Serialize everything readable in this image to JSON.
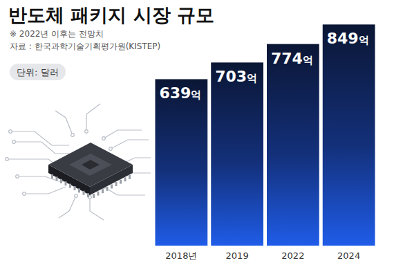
{
  "chart_data": {
    "type": "bar",
    "title": "반도체 패키지 시장 규모",
    "subtitle": "※ 2022년 이후는 전망치",
    "source": "자료 : 한국과학기술기획평가원(KISTEP)",
    "unit": "단위: 달러",
    "categories": [
      "2018년",
      "2019",
      "2022",
      "2024"
    ],
    "values": [
      639,
      703,
      774,
      849
    ],
    "value_labels": [
      "639억",
      "703억",
      "774억",
      "849억"
    ],
    "color": "#1f5ce8",
    "ylim": [
      0,
      850
    ],
    "data_labels": true,
    "tick_labels": "x"
  }
}
